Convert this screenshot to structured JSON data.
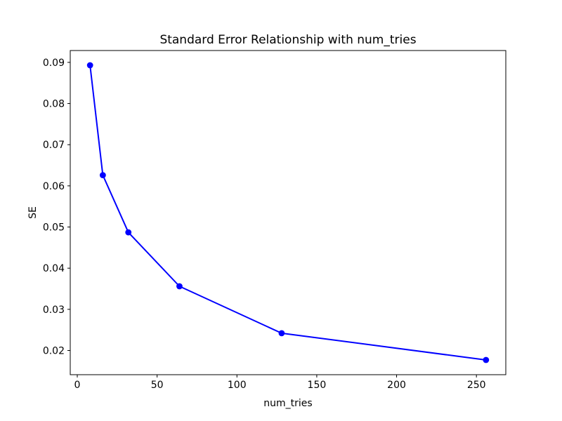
{
  "figure": {
    "background": "#ffffff",
    "axes_facecolor": "#ffffff",
    "spine_color": "#000000",
    "tick_color": "#000000"
  },
  "chart_data": {
    "type": "line",
    "title": "Standard Error Relationship with num_tries",
    "xlabel": "num_tries",
    "ylabel": "SE",
    "x": [
      8,
      16,
      32,
      64,
      128,
      256
    ],
    "y": [
      0.0893,
      0.0626,
      0.0487,
      0.0356,
      0.0242,
      0.0177
    ],
    "line_color": "#0000ff",
    "marker": "o",
    "marker_color": "#0000ff",
    "x_ticks": [
      0,
      50,
      100,
      150,
      200,
      250
    ],
    "y_ticks": [
      0.02,
      0.03,
      0.04,
      0.05,
      0.06,
      0.07,
      0.08,
      0.09
    ],
    "xlim": [
      -4.4,
      268.4
    ],
    "ylim": [
      0.01412,
      0.09288
    ],
    "grid": false,
    "legend_position": "none"
  }
}
